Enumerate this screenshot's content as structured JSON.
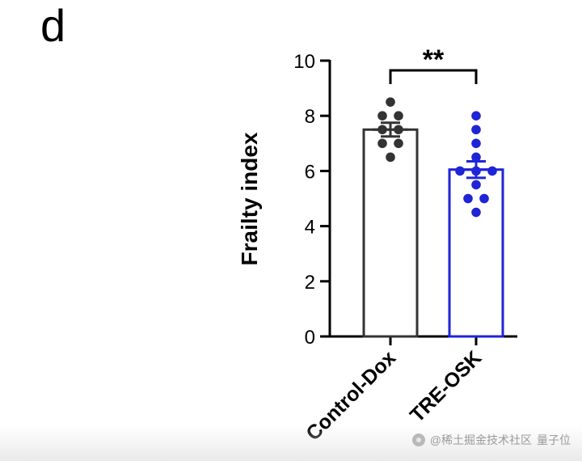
{
  "panel_label": "d",
  "watermark": {
    "text": "@稀土掘金技术社区",
    "overlay_text": "量子位"
  },
  "chart_data": {
    "type": "bar",
    "categories": [
      "Control-Dox",
      "TRE-OSK"
    ],
    "ylabel": "Frailty index",
    "xlabel": "",
    "ylim": [
      0,
      10
    ],
    "yticks": [
      0,
      2,
      4,
      6,
      8,
      10
    ],
    "series": [
      {
        "values": [
          7.5,
          6.05
        ],
        "error": [
          0.25,
          0.3
        ],
        "points": [
          [
            8.5,
            8.0,
            8.0,
            7.5,
            7.5,
            7.0,
            7.0,
            6.5
          ],
          [
            8.0,
            7.5,
            7.0,
            6.5,
            6.0,
            6.0,
            6.0,
            5.5,
            5.0,
            5.0,
            4.5
          ]
        ]
      }
    ],
    "colors": [
      "#333333",
      "#1f24d6"
    ],
    "significance": {
      "between": [
        0,
        1
      ],
      "label": "**"
    },
    "grid": false,
    "legend": "none"
  }
}
